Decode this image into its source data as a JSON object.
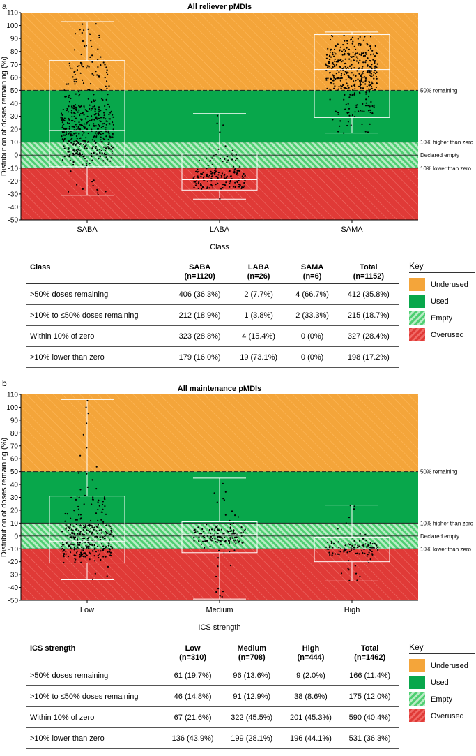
{
  "panels": [
    {
      "letter": "a",
      "title": "All reliever pMDIs",
      "xlabel": "Class",
      "ylabel": "Distribution of doses remaining (%)",
      "zones": [
        {
          "label": "50% remaining",
          "y": 50
        },
        {
          "label": "10% higher than zero",
          "y": 10
        },
        {
          "label": "Declared empty",
          "y": 0
        },
        {
          "label": "10% lower than zero",
          "y": -10
        }
      ],
      "table": {
        "columns": [
          "Class",
          "SABA\n(n=1120)",
          "LABA\n(n=26)",
          "SAMA\n(n=6)",
          "Total\n(n=1152)"
        ],
        "rows": [
          [
            ">50% doses remaining",
            "406 (36.3%)",
            "2 (7.7%)",
            "4 (66.7%)",
            "412 (35.8%)"
          ],
          [
            ">10% to ≤50% doses remaining",
            "212 (18.9%)",
            "1 (3.8%)",
            "2 (33.3%)",
            "215 (18.7%)"
          ],
          [
            "Within 10% of zero",
            "323 (28.8%)",
            "4 (15.4%)",
            "0 (0%)",
            "327 (28.4%)"
          ],
          [
            ">10% lower than zero",
            "179 (16.0%)",
            "19 (73.1%)",
            "0 (0%)",
            "198 (17.2%)"
          ]
        ]
      }
    },
    {
      "letter": "b",
      "title": "All maintenance pMDIs",
      "xlabel": "ICS strength",
      "ylabel": "Distribution of doses remaining (%)",
      "zones": [
        {
          "label": "50% remaining",
          "y": 50
        },
        {
          "label": "10% higher than zero",
          "y": 10
        },
        {
          "label": "Declared empty",
          "y": 0
        },
        {
          "label": "10% lower than zero",
          "y": -10
        }
      ],
      "table": {
        "columns": [
          "ICS strength",
          "Low\n(n=310)",
          "Medium\n(n=708)",
          "High\n(n=444)",
          "Total\n(n=1462)"
        ],
        "rows": [
          [
            ">50% doses remaining",
            "61 (19.7%)",
            "96 (13.6%)",
            "9 (2.0%)",
            "166 (11.4%)"
          ],
          [
            ">10% to ≤50% doses remaining",
            "46 (14.8%)",
            "91 (12.9%)",
            "38 (8.6%)",
            "175 (12.0%)"
          ],
          [
            "Within 10% of zero",
            "67 (21.6%)",
            "322 (45.5%)",
            "201 (45.3%)",
            "590 (40.4%)"
          ],
          [
            ">10% lower than zero",
            "136 (43.9%)",
            "199 (28.1%)",
            "196 (44.1%)",
            "531 (36.3%)"
          ]
        ]
      }
    }
  ],
  "key": {
    "title": "Key",
    "items": [
      {
        "label": "Underused",
        "color": "#f4a53a"
      },
      {
        "label": "Used",
        "color": "#08a74b"
      },
      {
        "label": "Empty",
        "color": "#4fcf72"
      },
      {
        "label": "Overused",
        "color": "#e03a37"
      }
    ]
  },
  "chart_data": [
    {
      "type": "box",
      "title": "All reliever pMDIs",
      "xlabel": "Class",
      "ylabel": "Distribution of doses remaining (%)",
      "ylim": [
        -50,
        110
      ],
      "yticks": [
        -50,
        -40,
        -30,
        -20,
        -10,
        0,
        10,
        20,
        30,
        40,
        50,
        60,
        70,
        80,
        90,
        100,
        110
      ],
      "categories": [
        "SABA",
        "LABA",
        "SAMA"
      ],
      "boxes": [
        {
          "min": -31,
          "q1": -9,
          "median": 19,
          "q3": 73,
          "max": 103
        },
        {
          "min": -34,
          "q1": -27,
          "median": -19,
          "q3": 1,
          "max": 32
        },
        {
          "min": 17,
          "q1": 29,
          "median": 66,
          "q3": 93,
          "max": 95
        }
      ],
      "colors": {
        "underused": "#f4a53a",
        "used": "#08a74b",
        "empty": "#4fcf72",
        "overused": "#e03a37"
      }
    },
    {
      "type": "box",
      "title": "All maintenance pMDIs",
      "xlabel": "ICS strength",
      "ylabel": "Distribution of doses remaining (%)",
      "ylim": [
        -50,
        110
      ],
      "yticks": [
        -50,
        -40,
        -30,
        -20,
        -10,
        0,
        10,
        20,
        30,
        40,
        50,
        60,
        70,
        80,
        90,
        100,
        110
      ],
      "categories": [
        "Low",
        "Medium",
        "High"
      ],
      "boxes": [
        {
          "min": -34,
          "q1": -21,
          "median": -4,
          "q3": 31,
          "max": 106
        },
        {
          "min": -49,
          "q1": -13,
          "median": 1,
          "q3": 11,
          "max": 45
        },
        {
          "min": -35,
          "q1": -20,
          "median": -10,
          "q3": -1,
          "max": 24
        }
      ],
      "colors": {
        "underused": "#f4a53a",
        "used": "#08a74b",
        "empty": "#4fcf72",
        "overused": "#e03a37"
      }
    }
  ]
}
